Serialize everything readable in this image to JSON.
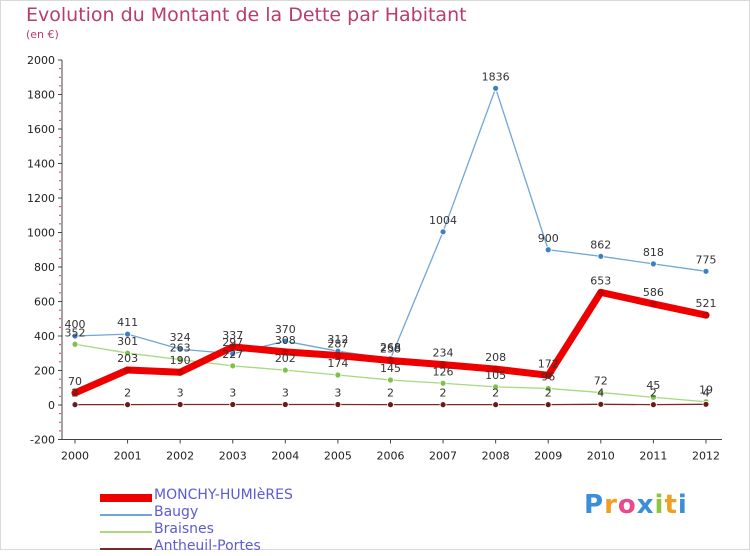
{
  "header": {
    "title": "Evolution du Montant de la Dette par Habitant",
    "unit": "(en €)"
  },
  "logo": {
    "text": "Proxiti",
    "letters": [
      "P",
      "r",
      "o",
      "x",
      "i",
      "t",
      "i"
    ],
    "colors": [
      "#3a8fd8",
      "#f0a020",
      "#e84a8a",
      "#3a8fd8",
      "#8cc63f",
      "#f0a020",
      "#3a8fd8"
    ]
  },
  "chart_data": {
    "type": "line",
    "categories": [
      "2000",
      "2001",
      "2002",
      "2003",
      "2004",
      "2005",
      "2006",
      "2007",
      "2008",
      "2009",
      "2010",
      "2011",
      "2012"
    ],
    "ylim": [
      -200,
      2000
    ],
    "yticks": [
      "-200",
      "0",
      "200",
      "400",
      "600",
      "800",
      "1000",
      "1200",
      "1400",
      "1600",
      "1800",
      "2000"
    ],
    "grid": false,
    "legend_position": "bottom-left",
    "series": [
      {
        "name": "Baugy",
        "color": "#6fa6d8",
        "marker": "#3d7fc4",
        "width": 1.3,
        "values": [
          400,
          411,
          324,
          297,
          370,
          312,
          268,
          1004,
          1836,
          900,
          862,
          818,
          775
        ],
        "labels": [
          "400",
          "411",
          "324",
          "297",
          "370",
          "312",
          "268",
          "1004",
          "1836",
          "900",
          "862",
          "818",
          "775"
        ]
      },
      {
        "name": "Braisnes",
        "color": "#a8d880",
        "marker": "#7ec24a",
        "width": 1.3,
        "values": [
          352,
          301,
          263,
          227,
          202,
          174,
          145,
          126,
          105,
          96,
          72,
          45,
          19
        ],
        "labels": [
          "352",
          "301",
          "263",
          "227",
          "202",
          "174",
          "145",
          "126",
          "105",
          "96",
          "72",
          "45",
          "19"
        ]
      },
      {
        "name": "Antheuil-Portes",
        "color": "#7a2828",
        "marker": "#6a1a1a",
        "width": 1.3,
        "values": [
          2,
          2,
          3,
          3,
          3,
          3,
          2,
          2,
          2,
          2,
          4,
          2,
          4
        ],
        "labels": [
          "2",
          "2",
          "3",
          "3",
          "3",
          "3",
          "2",
          "2",
          "2",
          "2",
          "4",
          "2",
          "4"
        ]
      },
      {
        "name": "MONCHY-HUMIèRES",
        "color": "#ee0000",
        "marker": "#cc0000",
        "width": 7,
        "values": [
          70,
          203,
          190,
          337,
          308,
          287,
          258,
          234,
          208,
          172,
          653,
          586,
          521
        ],
        "labels": [
          "70",
          "203",
          "190",
          "337",
          "308",
          "287",
          "258",
          "234",
          "208",
          "172",
          "653",
          "586",
          "521"
        ]
      }
    ]
  },
  "legend": [
    {
      "name": "MONCHY-HUMIèRES",
      "color": "#ee0000",
      "thickness": 8
    },
    {
      "name": "Baugy",
      "color": "#6fa6d8",
      "thickness": 2
    },
    {
      "name": "Braisnes",
      "color": "#a8d880",
      "thickness": 2
    },
    {
      "name": "Antheuil-Portes",
      "color": "#7a2828",
      "thickness": 2
    }
  ]
}
